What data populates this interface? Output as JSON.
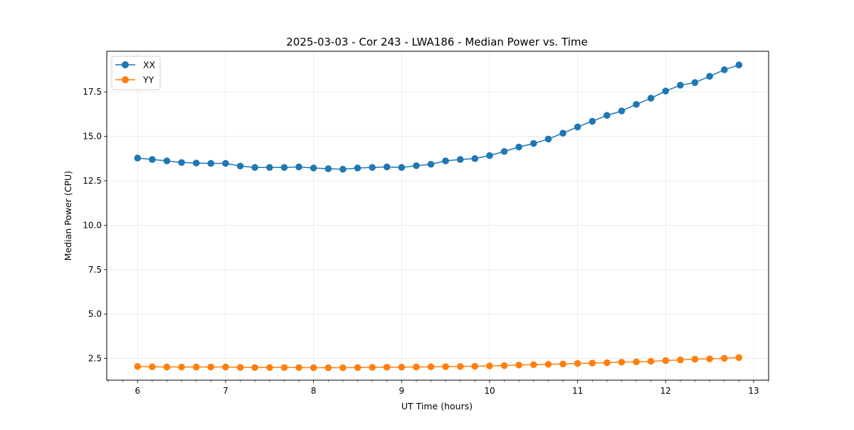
{
  "chart_data": {
    "type": "line",
    "title": "2025-03-03 - Cor 243 - LWA186 - Median Power vs. Time",
    "xlabel": "UT Time (hours)",
    "ylabel": "Median Power (CPU)",
    "xlim": [
      5.65,
      13.17
    ],
    "ylim": [
      1.28,
      19.79
    ],
    "xticks": [
      6,
      7,
      8,
      9,
      10,
      11,
      12,
      13
    ],
    "yticks": [
      2.5,
      5.0,
      7.5,
      10.0,
      12.5,
      15.0,
      17.5
    ],
    "ytick_labels": [
      "2.5",
      "5.0",
      "7.5",
      "10.0",
      "12.5",
      "15.0",
      "17.5"
    ],
    "grid": true,
    "legend_position": "top-left",
    "x": [
      6.0,
      6.167,
      6.333,
      6.5,
      6.667,
      6.833,
      7.0,
      7.167,
      7.333,
      7.5,
      7.667,
      7.833,
      8.0,
      8.167,
      8.333,
      8.5,
      8.667,
      8.833,
      9.0,
      9.167,
      9.333,
      9.5,
      9.667,
      9.833,
      10.0,
      10.167,
      10.333,
      10.5,
      10.667,
      10.833,
      11.0,
      11.167,
      11.333,
      11.5,
      11.667,
      11.833,
      12.0,
      12.167,
      12.333,
      12.5,
      12.667,
      12.833
    ],
    "series": [
      {
        "name": "XX",
        "color": "#1f77b4",
        "values": [
          13.78,
          13.7,
          13.62,
          13.53,
          13.5,
          13.48,
          13.48,
          13.33,
          13.25,
          13.25,
          13.25,
          13.28,
          13.22,
          13.18,
          13.15,
          13.22,
          13.25,
          13.28,
          13.25,
          13.35,
          13.43,
          13.62,
          13.7,
          13.75,
          13.92,
          14.15,
          14.4,
          14.6,
          14.85,
          15.18,
          15.53,
          15.85,
          16.18,
          16.43,
          16.8,
          17.15,
          17.55,
          17.88,
          18.03,
          18.38,
          18.75,
          19.02
        ]
      },
      {
        "name": "YY",
        "color": "#ff7f0e",
        "values": [
          2.05,
          2.03,
          2.02,
          2.02,
          2.02,
          2.02,
          2.02,
          2.0,
          1.99,
          1.99,
          1.99,
          1.99,
          1.98,
          1.98,
          1.98,
          1.99,
          2.0,
          2.01,
          2.01,
          2.02,
          2.03,
          2.04,
          2.05,
          2.06,
          2.08,
          2.1,
          2.13,
          2.15,
          2.17,
          2.19,
          2.22,
          2.24,
          2.26,
          2.29,
          2.31,
          2.34,
          2.38,
          2.42,
          2.46,
          2.48,
          2.51,
          2.55
        ]
      }
    ]
  }
}
